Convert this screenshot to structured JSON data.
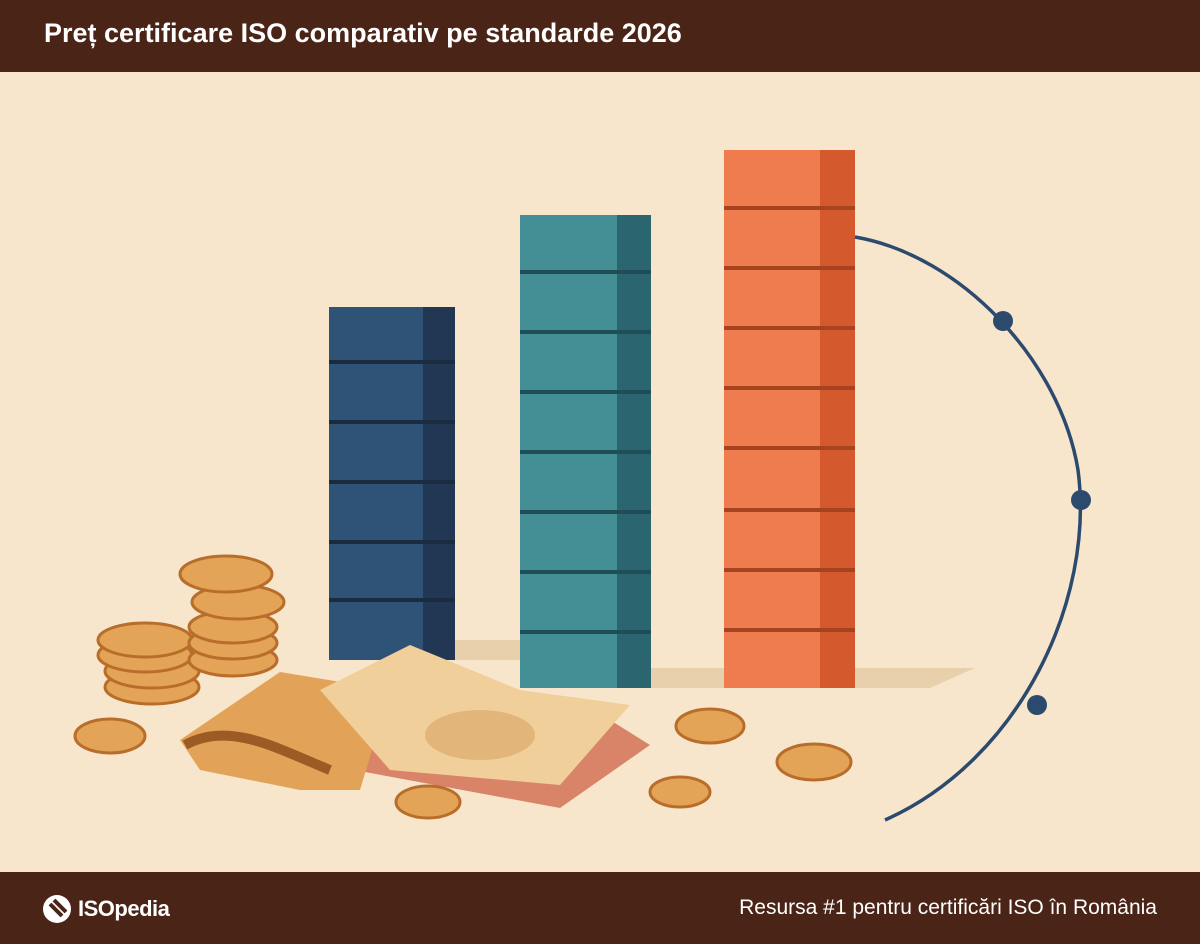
{
  "header": {
    "title": "Preț certificare ISO comparativ pe standarde 2026"
  },
  "footer": {
    "brand": "ISOpedia",
    "tagline": "Resursa #1 pentru certificări ISO în România"
  }
}
